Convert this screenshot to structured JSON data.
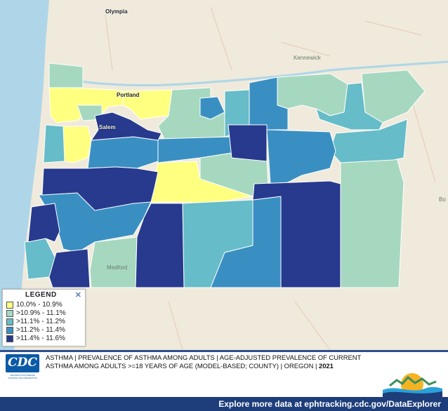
{
  "map": {
    "cities": {
      "olympia": "Olympia",
      "kennewick": "Kennewick",
      "portland": "Portland",
      "salem": "Salem",
      "medford": "Medford",
      "boise": "Bo"
    },
    "colors": {
      "class1": "#ffff80",
      "class2": "#a6d8c0",
      "class3": "#66bcc8",
      "class4": "#3a8fc2",
      "class5": "#273a8e"
    }
  },
  "legend": {
    "title": "LEGEND",
    "close_icon": "close-icon",
    "items": [
      {
        "label": "10.0% - 10.9%",
        "color": "#ffff80"
      },
      {
        "label": ">10.9% - 11.1%",
        "color": "#a6d8c0"
      },
      {
        "label": ">11.1% - 11.2%",
        "color": "#66bcc8"
      },
      {
        "label": ">11.2% - 11.4%",
        "color": "#3a8fc2"
      },
      {
        "label": ">11.4% - 11.6%",
        "color": "#273a8e"
      }
    ]
  },
  "footer": {
    "logo_text": "CDC",
    "logo_tagline": "CENTERS FOR DISEASE CONTROL AND PREVENTION",
    "caption_main": "ASTHMA | PREVALENCE OF ASTHMA AMONG ADULTS | AGE-ADJUSTED PREVALENCE OF CURRENT ASTHMA AMONG ADULTS >=18 YEARS OF AGE (MODEL-BASED; COUNTY) | OREGON | ",
    "caption_year": "2021",
    "bottom_link": "Explore more data at ephtracking.cdc.gov/DataExplorer"
  }
}
